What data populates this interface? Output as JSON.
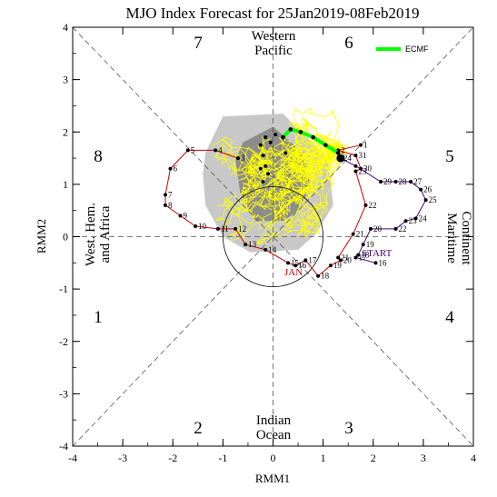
{
  "chart_data": {
    "type": "line",
    "title": "MJO Index Forecast for 25Jan2019-08Feb2019",
    "xlabel": "RMM1",
    "ylabel": "RMM2",
    "xlim": [
      -4,
      4
    ],
    "ylim": [
      -4,
      4
    ],
    "x_ticks": [
      "-4",
      "-3",
      "-2",
      "-1",
      "0",
      "1",
      "2",
      "3",
      "4"
    ],
    "y_ticks": [
      "-4",
      "-3",
      "-2",
      "-1",
      "0",
      "1",
      "2",
      "3",
      "4"
    ],
    "phase_numbers": [
      "1",
      "2",
      "3",
      "4",
      "5",
      "6",
      "7",
      "8"
    ],
    "regions": {
      "western_pacific": [
        "Western",
        "Pacific"
      ],
      "indian_ocean": [
        "Indian",
        "Ocean"
      ],
      "maritime_continent": [
        "Maritime",
        "Continent"
      ],
      "africa": [
        "West. Hem.",
        "and Africa"
      ]
    },
    "legend": {
      "label": "ECMF",
      "color": "#00ff00",
      "position": "top-right"
    },
    "annotations": {
      "start": "START",
      "month": "JAN"
    },
    "colors": {
      "observed_dec": "#7a0000",
      "observed_jan": "#cc0000",
      "observed_jan_tail": "#4b0082",
      "ensemble": "#ffff00",
      "ensemble_mean": "#00ff00",
      "spread_outer": "#c8c8c8",
      "spread_inner": "#8c8c8c"
    },
    "series": [
      {
        "values": [
          {
            "x": 1.75,
            "y": 1.75,
            "label": "1"
          },
          {
            "x": 1.3,
            "y": 1.65,
            "label": "2"
          },
          {
            "x": 1.65,
            "y": 1.55,
            "label": "31"
          },
          {
            "x": 1.75,
            "y": 1.3,
            "label": "30"
          },
          {
            "x": 1.65,
            "y": 1.25,
            "label": "23"
          },
          {
            "x": 1.85,
            "y": 0.6,
            "label": "22"
          },
          {
            "x": 1.6,
            "y": 0.05,
            "label": "21"
          },
          {
            "x": 1.3,
            "y": -0.4,
            "label": "21"
          },
          {
            "x": 1.35,
            "y": -0.45,
            "label": "20"
          },
          {
            "x": 1.15,
            "y": -0.55,
            "label": "19"
          },
          {
            "x": 0.9,
            "y": -0.75,
            "label": "18"
          },
          {
            "x": 0.65,
            "y": -0.45,
            "label": "17"
          },
          {
            "x": 0.45,
            "y": -0.55,
            "label": "16"
          },
          {
            "x": 0.3,
            "y": -0.5,
            "label": "15"
          },
          {
            "x": -0.15,
            "y": -0.25,
            "label": "14"
          },
          {
            "x": -0.55,
            "y": -0.15,
            "label": "13"
          },
          {
            "x": -0.75,
            "y": 0.15,
            "label": "12"
          },
          {
            "x": -1.1,
            "y": 0.15,
            "label": "11"
          },
          {
            "x": -1.55,
            "y": 0.2,
            "label": "10"
          },
          {
            "x": -1.85,
            "y": 0.4,
            "label": "9"
          },
          {
            "x": -2.15,
            "y": 0.6,
            "label": "8"
          },
          {
            "x": -2.15,
            "y": 0.8,
            "label": "7"
          },
          {
            "x": -2.05,
            "y": 1.3,
            "label": "6"
          },
          {
            "x": -1.7,
            "y": 1.65,
            "label": "5"
          },
          {
            "x": -1.15,
            "y": 1.65,
            "label": "4"
          },
          {
            "x": -0.7,
            "y": 1.5,
            "label": "3"
          }
        ]
      },
      {
        "values": [
          {
            "x": 1.35,
            "y": 1.5,
            "label": "24"
          },
          {
            "x": 1.65,
            "y": 1.35,
            "label": ""
          },
          {
            "x": 2.15,
            "y": 1.05,
            "label": "29"
          },
          {
            "x": 2.45,
            "y": 1.05,
            "label": "28"
          },
          {
            "x": 2.75,
            "y": 1.05,
            "label": "27"
          },
          {
            "x": 2.95,
            "y": 0.9,
            "label": "26"
          },
          {
            "x": 3.05,
            "y": 0.7,
            "label": "25"
          },
          {
            "x": 2.85,
            "y": 0.35,
            "label": "24"
          },
          {
            "x": 2.65,
            "y": 0.3,
            "label": "23"
          },
          {
            "x": 2.45,
            "y": 0.15,
            "label": "22"
          },
          {
            "x": 1.95,
            "y": 0.15,
            "label": "20"
          },
          {
            "x": 1.8,
            "y": -0.15,
            "label": "19"
          },
          {
            "x": 1.7,
            "y": -0.35,
            "label": "18"
          },
          {
            "x": 1.65,
            "y": -0.4,
            "label": "17"
          },
          {
            "x": 2.05,
            "y": -0.5,
            "label": "16"
          }
        ]
      },
      {
        "values": [
          {
            "x": 0.2,
            "y": 1.9,
            "label": ""
          },
          {
            "x": 0.35,
            "y": 2.05,
            "label": ""
          },
          {
            "x": 0.55,
            "y": 2.0,
            "label": ""
          },
          {
            "x": 0.8,
            "y": 1.9,
            "label": ""
          },
          {
            "x": 1.05,
            "y": 1.75,
            "label": ""
          },
          {
            "x": 1.3,
            "y": 1.6,
            "label": ""
          }
        ]
      },
      {
        "values": [
          {
            "x": -0.2,
            "y": 1.55,
            "label": ""
          },
          {
            "x": -0.05,
            "y": 1.8,
            "label": ""
          },
          {
            "x": 0.05,
            "y": 1.95,
            "label": ""
          },
          {
            "x": -0.25,
            "y": 1.75,
            "label": ""
          },
          {
            "x": -0.15,
            "y": 1.9,
            "label": ""
          },
          {
            "x": 0.25,
            "y": 1.6,
            "label": ""
          },
          {
            "x": -0.25,
            "y": 1.3,
            "label": ""
          },
          {
            "x": -0.2,
            "y": 1.05,
            "label": ""
          },
          {
            "x": -0.1,
            "y": 1.2,
            "label": ""
          },
          {
            "x": -0.15,
            "y": 1.35,
            "label": ""
          }
        ]
      },
      {
        "values": [
          {
            "x": 1.35,
            "y": 1.5,
            "label": ""
          }
        ]
      }
    ],
    "spread_outer": [
      {
        "x": -1.4,
        "y": 1.2
      },
      {
        "x": -1.35,
        "y": 1.6
      },
      {
        "x": -1.0,
        "y": 2.3
      },
      {
        "x": 0.2,
        "y": 2.35
      },
      {
        "x": 1.1,
        "y": 1.5
      },
      {
        "x": 1.2,
        "y": 0.6
      },
      {
        "x": 0.85,
        "y": 0.05
      },
      {
        "x": 0.5,
        "y": -0.25
      },
      {
        "x": -0.45,
        "y": -0.3
      },
      {
        "x": -1.0,
        "y": 0.0
      },
      {
        "x": -1.35,
        "y": 0.6
      }
    ],
    "spread_inner": [
      {
        "x": -0.75,
        "y": 1.45
      },
      {
        "x": -0.6,
        "y": 1.8
      },
      {
        "x": 0.0,
        "y": 2.1
      },
      {
        "x": 0.6,
        "y": 1.6
      },
      {
        "x": 0.75,
        "y": 0.95
      },
      {
        "x": 0.5,
        "y": 0.5
      },
      {
        "x": 0.2,
        "y": 0.3
      },
      {
        "x": -0.35,
        "y": 0.3
      },
      {
        "x": -0.65,
        "y": 0.8
      }
    ]
  }
}
